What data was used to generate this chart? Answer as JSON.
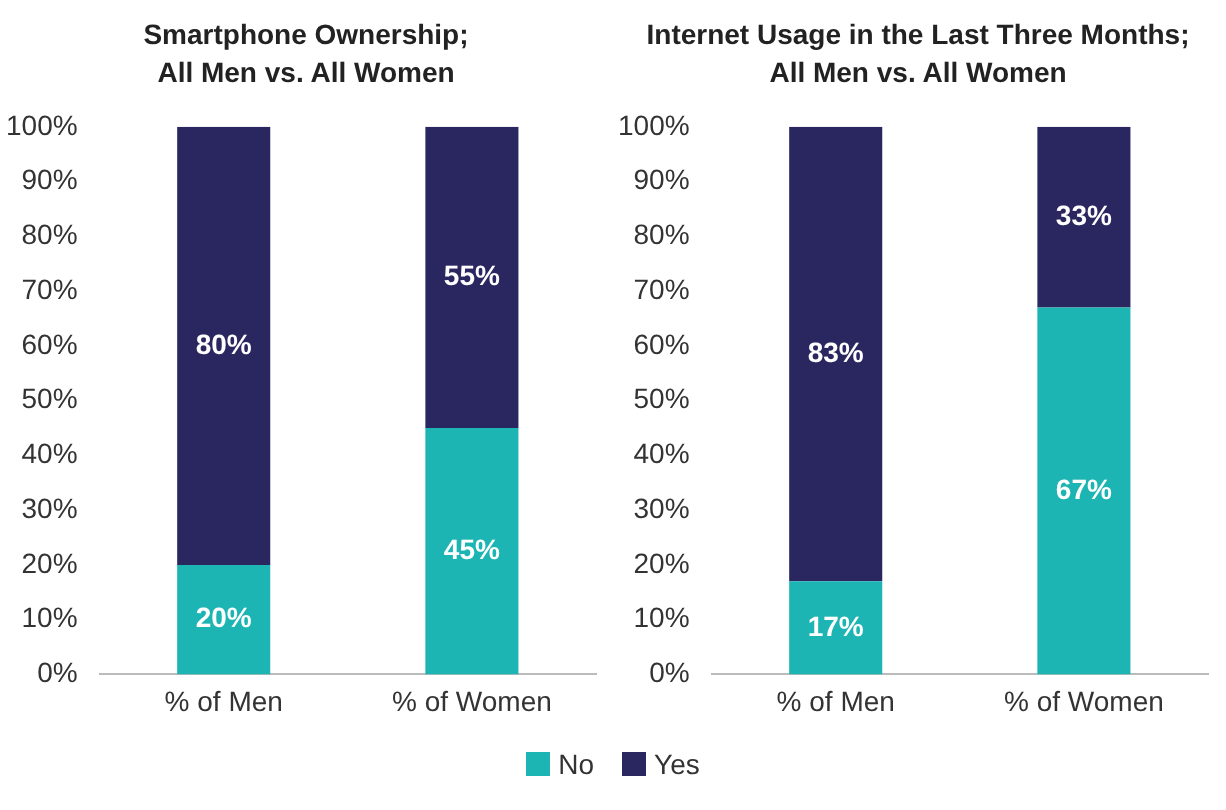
{
  "chart_data": [
    {
      "type": "bar",
      "title": "Smartphone Ownership;\nAll Men vs. All Women",
      "categories": [
        "% of Men",
        "% of Women"
      ],
      "stacked": true,
      "legend": "bottom",
      "grid": false,
      "ylim": [
        0,
        100
      ],
      "yticks": [
        {
          "value": 0,
          "label": "0%"
        },
        {
          "value": 10,
          "label": "10%"
        },
        {
          "value": 20,
          "label": "20%"
        },
        {
          "value": 30,
          "label": "30%"
        },
        {
          "value": 40,
          "label": "40%"
        },
        {
          "value": 50,
          "label": "50%"
        },
        {
          "value": 60,
          "label": "60%"
        },
        {
          "value": 70,
          "label": "70%"
        },
        {
          "value": 80,
          "label": "80%"
        },
        {
          "value": 90,
          "label": "90%"
        },
        {
          "value": 100,
          "label": "100%"
        }
      ],
      "series": [
        {
          "name": "No",
          "color": "#1cb5b3",
          "values": [
            20,
            45
          ],
          "value_labels": [
            "20%",
            "45%"
          ]
        },
        {
          "name": "Yes",
          "color": "#2a2660",
          "values": [
            80,
            55
          ],
          "value_labels": [
            "80%",
            "55%"
          ]
        }
      ]
    },
    {
      "type": "bar",
      "title": "Internet Usage in the Last Three Months;\nAll Men vs. All Women",
      "categories": [
        "% of Men",
        "% of Women"
      ],
      "stacked": true,
      "legend": "bottom",
      "grid": false,
      "ylim": [
        0,
        100
      ],
      "yticks": [
        {
          "value": 0,
          "label": "0%"
        },
        {
          "value": 10,
          "label": "10%"
        },
        {
          "value": 20,
          "label": "20%"
        },
        {
          "value": 30,
          "label": "30%"
        },
        {
          "value": 40,
          "label": "40%"
        },
        {
          "value": 50,
          "label": "50%"
        },
        {
          "value": 60,
          "label": "60%"
        },
        {
          "value": 70,
          "label": "70%"
        },
        {
          "value": 80,
          "label": "80%"
        },
        {
          "value": 90,
          "label": "90%"
        },
        {
          "value": 100,
          "label": "100%"
        }
      ],
      "series": [
        {
          "name": "No",
          "color": "#1cb5b3",
          "values": [
            17,
            67
          ],
          "value_labels": [
            "17%",
            "67%"
          ]
        },
        {
          "name": "Yes",
          "color": "#2a2660",
          "values": [
            83,
            33
          ],
          "value_labels": [
            "83%",
            "33%"
          ]
        }
      ]
    }
  ]
}
